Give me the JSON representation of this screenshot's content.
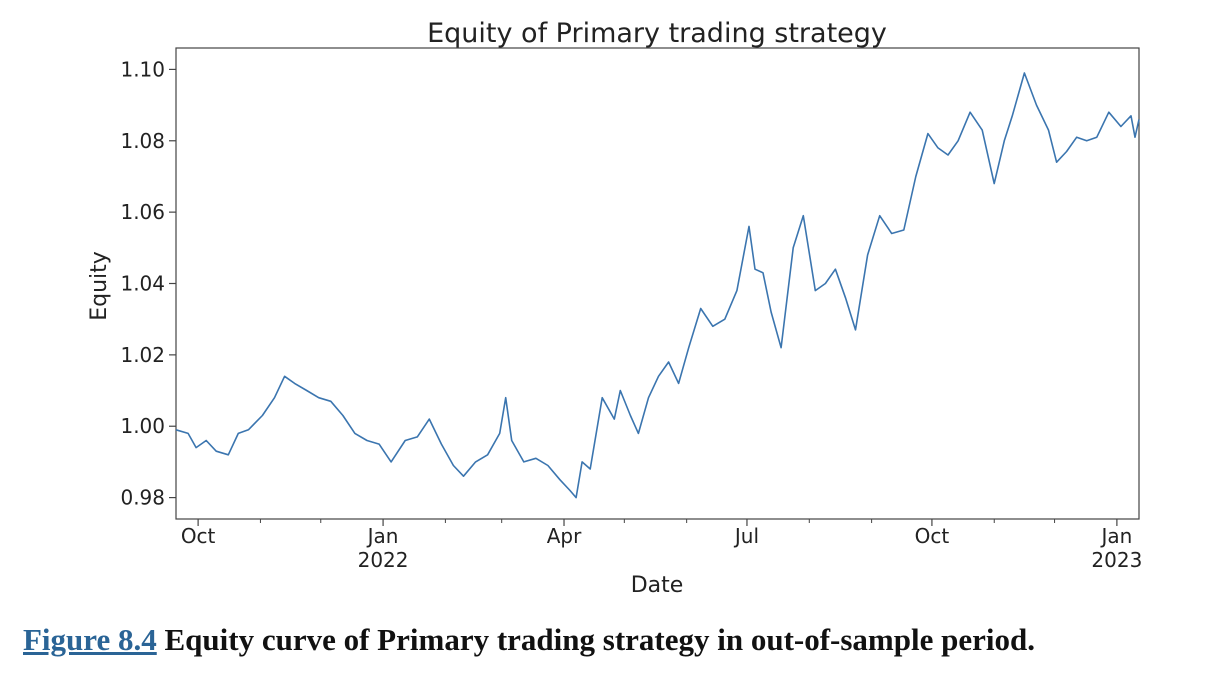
{
  "chart_data": {
    "type": "line",
    "title": "Equity of Primary trading strategy",
    "xlabel": "Date",
    "ylabel": "Equity",
    "ylim": [
      0.974,
      1.106
    ],
    "xlim": [
      "2021-09-20",
      "2023-01-12"
    ],
    "grid": false,
    "y_ticks": [
      "0.98",
      "1.00",
      "1.02",
      "1.04",
      "1.06",
      "1.08",
      "1.10"
    ],
    "x_ticks": [
      {
        "label": "Oct",
        "sub": "",
        "date": "2021-10-01"
      },
      {
        "label": "Jan",
        "sub": "2022",
        "date": "2022-01-01"
      },
      {
        "label": "Apr",
        "sub": "",
        "date": "2022-04-01"
      },
      {
        "label": "Jul",
        "sub": "",
        "date": "2022-07-01"
      },
      {
        "label": "Oct",
        "sub": "",
        "date": "2022-10-01"
      },
      {
        "label": "Jan",
        "sub": "2023",
        "date": "2023-01-01"
      }
    ],
    "line_color": "#3b75af",
    "series": [
      {
        "x": [
          "2021-09-20",
          "2021-09-26",
          "2021-09-30",
          "2021-10-05",
          "2021-10-10",
          "2021-10-16",
          "2021-10-21",
          "2021-10-26",
          "2021-11-02",
          "2021-11-08",
          "2021-11-13",
          "2021-11-18",
          "2021-11-24",
          "2021-11-30",
          "2021-12-06",
          "2021-12-12",
          "2021-12-18",
          "2021-12-24",
          "2021-12-30",
          "2022-01-05",
          "2022-01-12",
          "2022-01-18",
          "2022-01-24",
          "2022-01-30",
          "2022-02-05",
          "2022-02-10",
          "2022-02-16",
          "2022-02-22",
          "2022-02-28",
          "2022-03-03",
          "2022-03-06",
          "2022-03-12",
          "2022-03-18",
          "2022-03-24",
          "2022-03-30",
          "2022-04-04",
          "2022-04-07",
          "2022-04-10",
          "2022-04-14",
          "2022-04-20",
          "2022-04-26",
          "2022-04-29",
          "2022-05-04",
          "2022-05-08",
          "2022-05-13",
          "2022-05-18",
          "2022-05-23",
          "2022-05-28",
          "2022-06-02",
          "2022-06-08",
          "2022-06-14",
          "2022-06-20",
          "2022-06-26",
          "2022-07-02",
          "2022-07-05",
          "2022-07-09",
          "2022-07-13",
          "2022-07-18",
          "2022-07-24",
          "2022-07-29",
          "2022-08-04",
          "2022-08-09",
          "2022-08-14",
          "2022-08-19",
          "2022-08-24",
          "2022-08-30",
          "2022-09-05",
          "2022-09-11",
          "2022-09-17",
          "2022-09-23",
          "2022-09-29",
          "2022-10-04",
          "2022-10-09",
          "2022-10-14",
          "2022-10-20",
          "2022-10-26",
          "2022-11-01",
          "2022-11-06",
          "2022-11-10",
          "2022-11-16",
          "2022-11-22",
          "2022-11-28",
          "2022-12-02",
          "2022-12-07",
          "2022-12-12",
          "2022-12-17",
          "2022-12-22",
          "2022-12-28",
          "2023-01-03",
          "2023-01-08",
          "2023-01-10",
          "2023-01-12"
        ],
        "values": [
          0.999,
          0.998,
          0.994,
          0.996,
          0.993,
          0.992,
          0.998,
          0.999,
          1.003,
          1.008,
          1.014,
          1.012,
          1.01,
          1.008,
          1.007,
          1.003,
          0.998,
          0.996,
          0.995,
          0.99,
          0.996,
          0.997,
          1.002,
          0.995,
          0.989,
          0.986,
          0.99,
          0.992,
          0.998,
          1.008,
          0.996,
          0.99,
          0.991,
          0.989,
          0.985,
          0.982,
          0.98,
          0.99,
          0.988,
          1.008,
          1.002,
          1.01,
          1.003,
          0.998,
          1.008,
          1.014,
          1.018,
          1.012,
          1.022,
          1.033,
          1.028,
          1.03,
          1.038,
          1.056,
          1.044,
          1.043,
          1.032,
          1.022,
          1.05,
          1.059,
          1.038,
          1.04,
          1.044,
          1.036,
          1.027,
          1.048,
          1.059,
          1.054,
          1.055,
          1.07,
          1.082,
          1.078,
          1.076,
          1.08,
          1.088,
          1.083,
          1.068,
          1.08,
          1.087,
          1.099,
          1.09,
          1.083,
          1.074,
          1.077,
          1.081,
          1.08,
          1.081,
          1.088,
          1.084,
          1.087,
          1.081,
          1.086
        ]
      }
    ]
  },
  "caption": {
    "figure_label": "Figure 8.4",
    "text": " Equity curve of Primary trading strategy in out-of-sample period."
  }
}
